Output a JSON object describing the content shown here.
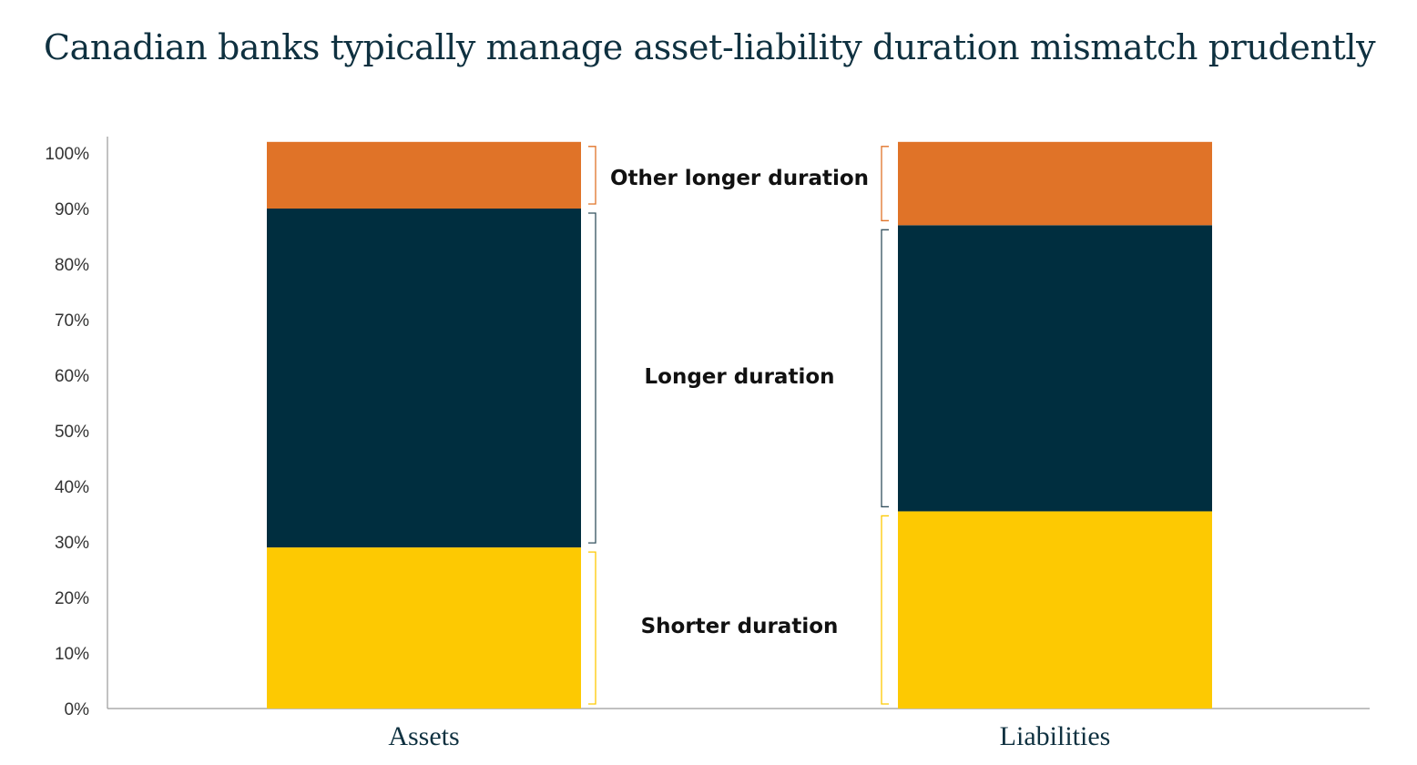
{
  "title": "Canadian banks typically manage asset-liability duration mismatch prudently",
  "colors": {
    "shorter": "#fdc902",
    "longer": "#002e3f",
    "other": "#e07328",
    "axis": "#9a9a9a",
    "longer_bracket": "#33505e"
  },
  "chart_data": {
    "type": "bar",
    "stacked": true,
    "categories": [
      "Assets",
      "Liabilities"
    ],
    "series": [
      {
        "name": "Shorter duration",
        "values": [
          29,
          35.5
        ]
      },
      {
        "name": "Longer duration",
        "values": [
          61,
          51.5
        ]
      },
      {
        "name": "Other longer duration",
        "values": [
          12,
          15
        ]
      }
    ],
    "title": "Canadian banks typically manage asset-liability duration mismatch prudently",
    "xlabel": "",
    "ylabel": "",
    "ylim": [
      0,
      100
    ],
    "yticks": [
      "0%",
      "10%",
      "20%",
      "30%",
      "40%",
      "50%",
      "60%",
      "70%",
      "80%",
      "90%",
      "100%"
    ],
    "grid": false,
    "legend": "inline labels between bars"
  }
}
